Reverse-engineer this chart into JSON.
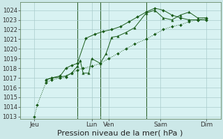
{
  "background_color": "#cce8e8",
  "plot_bg_color": "#d8f2f2",
  "grid_color": "#aacccc",
  "line_color": "#1a5c1a",
  "vline_color": "#336633",
  "xlim": [
    0,
    7
  ],
  "ylim": [
    1012.8,
    1024.8
  ],
  "yticks": [
    1013,
    1014,
    1015,
    1016,
    1017,
    1018,
    1019,
    1020,
    1021,
    1022,
    1023,
    1024
  ],
  "xtick_labels": [
    "Jeu",
    "Lun",
    "Ven",
    "Sam",
    "Dim"
  ],
  "xtick_positions": [
    0.5,
    2.5,
    3.1,
    4.9,
    6.5
  ],
  "xlabel": "Pression niveau de la mer( hPa )",
  "xlabel_fontsize": 8,
  "ytick_fontsize": 6,
  "xtick_fontsize": 6.5,
  "vline_positions": [
    2.0,
    2.8,
    4.4
  ],
  "s1_x": [
    0.5,
    0.6,
    0.9,
    1.1,
    1.4,
    1.6,
    1.8,
    2.0,
    2.2,
    2.5,
    2.8,
    3.1,
    3.4,
    3.7,
    4.0,
    4.4,
    4.7,
    5.0,
    5.3,
    5.6,
    5.9,
    6.2,
    6.5
  ],
  "s1_y": [
    1013.0,
    1014.2,
    1016.5,
    1016.8,
    1017.0,
    1017.1,
    1017.5,
    1017.8,
    1018.0,
    1018.2,
    1018.5,
    1019.0,
    1019.5,
    1020.0,
    1020.5,
    1021.0,
    1021.5,
    1022.0,
    1022.3,
    1022.5,
    1022.8,
    1023.0,
    1023.2
  ],
  "s2_x": [
    0.9,
    1.1,
    1.4,
    1.6,
    1.8,
    2.0,
    2.1,
    2.2,
    2.4,
    2.5,
    2.8,
    3.0,
    3.2,
    3.4,
    3.7,
    4.0,
    4.4,
    4.7,
    5.0,
    5.3,
    5.6,
    5.9,
    6.2,
    6.5
  ],
  "s2_y": [
    1016.8,
    1017.0,
    1017.1,
    1017.2,
    1017.5,
    1018.2,
    1018.8,
    1017.5,
    1017.5,
    1019.0,
    1018.5,
    1019.5,
    1021.2,
    1021.3,
    1021.7,
    1022.2,
    1023.7,
    1024.0,
    1023.2,
    1023.0,
    1023.5,
    1023.8,
    1023.2,
    1023.2
  ],
  "s3_x": [
    0.9,
    1.1,
    1.4,
    1.6,
    1.8,
    2.0,
    2.3,
    2.6,
    2.9,
    3.2,
    3.5,
    3.8,
    4.1,
    4.4,
    4.7,
    5.0,
    5.3,
    5.6,
    5.9,
    6.2,
    6.5
  ],
  "s3_y": [
    1016.8,
    1017.0,
    1017.2,
    1018.0,
    1018.3,
    1018.5,
    1021.1,
    1021.5,
    1021.8,
    1022.0,
    1022.3,
    1022.8,
    1023.3,
    1023.8,
    1024.2,
    1024.0,
    1023.5,
    1023.2,
    1023.0,
    1023.0,
    1023.0
  ]
}
